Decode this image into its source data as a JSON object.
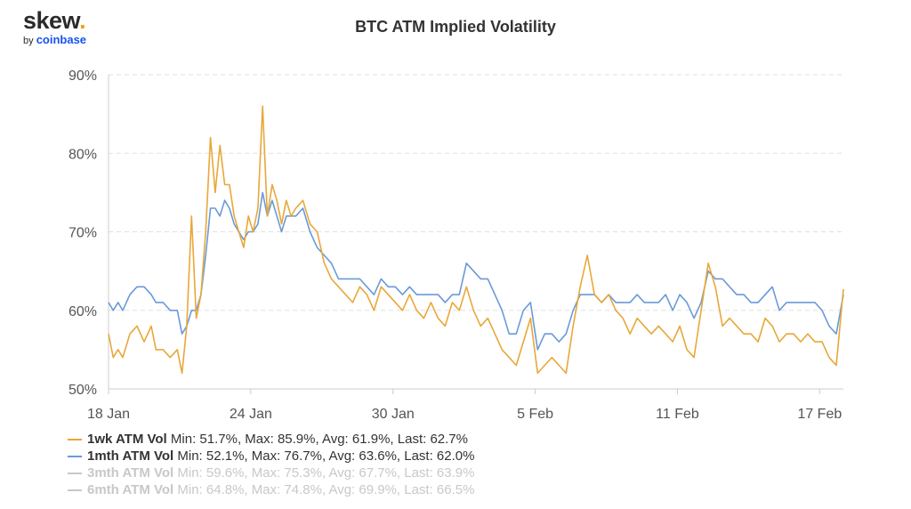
{
  "logo": {
    "brand": "skew",
    "dot": ".",
    "by": "by",
    "parent": "coinbase"
  },
  "chart_data": {
    "type": "line",
    "title": "BTC ATM Implied Volatility",
    "ylim": [
      50,
      90
    ],
    "y_ticks": [
      50,
      60,
      70,
      80,
      90
    ],
    "y_tick_labels": [
      "50%",
      "60%",
      "70%",
      "80%",
      "90%"
    ],
    "x_ticks": [
      0,
      6,
      12,
      18,
      24,
      30
    ],
    "x_tick_labels": [
      "18 Jan",
      "24 Jan",
      "30 Jan",
      "5 Feb",
      "11 Feb",
      "17 Feb"
    ],
    "x_range": [
      0,
      31
    ],
    "grid": "horizontal dashed",
    "legend_position": "bottom-left",
    "series": [
      {
        "name": "1wk ATM Vol",
        "stats": "Min: 51.7%, Max: 85.9%, Avg: 61.9%, Last: 62.7%",
        "color": "#e8a838",
        "visible": true,
        "x": [
          0,
          0.2,
          0.4,
          0.6,
          0.9,
          1.2,
          1.5,
          1.8,
          2.0,
          2.3,
          2.6,
          2.9,
          3.1,
          3.3,
          3.5,
          3.7,
          3.9,
          4.1,
          4.3,
          4.5,
          4.7,
          4.9,
          5.1,
          5.3,
          5.5,
          5.7,
          5.9,
          6.1,
          6.3,
          6.5,
          6.7,
          6.9,
          7.1,
          7.3,
          7.5,
          7.7,
          7.9,
          8.2,
          8.5,
          8.8,
          9.1,
          9.4,
          9.7,
          10.0,
          10.3,
          10.6,
          10.9,
          11.2,
          11.5,
          11.8,
          12.1,
          12.4,
          12.7,
          13.0,
          13.3,
          13.6,
          13.9,
          14.2,
          14.5,
          14.8,
          15.1,
          15.4,
          15.7,
          16.0,
          16.3,
          16.6,
          16.9,
          17.2,
          17.5,
          17.8,
          18.1,
          18.4,
          18.7,
          19.0,
          19.3,
          19.6,
          19.9,
          20.2,
          20.5,
          20.8,
          21.1,
          21.4,
          21.7,
          22.0,
          22.3,
          22.6,
          22.9,
          23.2,
          23.5,
          23.8,
          24.1,
          24.4,
          24.7,
          25.0,
          25.3,
          25.6,
          25.9,
          26.2,
          26.5,
          26.8,
          27.1,
          27.4,
          27.7,
          28.0,
          28.3,
          28.6,
          28.9,
          29.2,
          29.5,
          29.8,
          30.1,
          30.4,
          30.7,
          31.0
        ],
        "y": [
          57,
          54,
          55,
          54,
          57,
          58,
          56,
          58,
          55,
          55,
          54,
          55,
          52,
          58,
          72,
          59,
          62,
          70,
          82,
          75,
          81,
          76,
          76,
          72,
          70,
          68,
          72,
          70,
          73,
          86,
          72,
          76,
          74,
          71,
          74,
          72,
          73,
          74,
          71,
          70,
          66,
          64,
          63,
          62,
          61,
          63,
          62,
          60,
          63,
          62,
          61,
          60,
          62,
          60,
          59,
          61,
          59,
          58,
          61,
          60,
          63,
          60,
          58,
          59,
          57,
          55,
          54,
          53,
          56,
          59,
          52,
          53,
          54,
          53,
          52,
          58,
          63,
          67,
          62,
          61,
          62,
          60,
          59,
          57,
          59,
          58,
          57,
          58,
          57,
          56,
          58,
          55,
          54,
          60,
          66,
          63,
          58,
          59,
          58,
          57,
          57,
          56,
          59,
          58,
          56,
          57,
          57,
          56,
          57,
          56,
          56,
          54,
          53,
          62.7
        ]
      },
      {
        "name": "1mth ATM Vol",
        "stats": "Min: 52.1%, Max: 76.7%, Avg: 63.6%, Last: 62.0%",
        "color": "#6a9ad8",
        "visible": true,
        "x": [
          0,
          0.2,
          0.4,
          0.6,
          0.9,
          1.2,
          1.5,
          1.8,
          2.0,
          2.3,
          2.6,
          2.9,
          3.1,
          3.3,
          3.5,
          3.7,
          3.9,
          4.1,
          4.3,
          4.5,
          4.7,
          4.9,
          5.1,
          5.3,
          5.5,
          5.7,
          5.9,
          6.1,
          6.3,
          6.5,
          6.7,
          6.9,
          7.1,
          7.3,
          7.5,
          7.7,
          7.9,
          8.2,
          8.5,
          8.8,
          9.1,
          9.4,
          9.7,
          10.0,
          10.3,
          10.6,
          10.9,
          11.2,
          11.5,
          11.8,
          12.1,
          12.4,
          12.7,
          13.0,
          13.3,
          13.6,
          13.9,
          14.2,
          14.5,
          14.8,
          15.1,
          15.4,
          15.7,
          16.0,
          16.3,
          16.6,
          16.9,
          17.2,
          17.5,
          17.8,
          18.1,
          18.4,
          18.7,
          19.0,
          19.3,
          19.6,
          19.9,
          20.2,
          20.5,
          20.8,
          21.1,
          21.4,
          21.7,
          22.0,
          22.3,
          22.6,
          22.9,
          23.2,
          23.5,
          23.8,
          24.1,
          24.4,
          24.7,
          25.0,
          25.3,
          25.6,
          25.9,
          26.2,
          26.5,
          26.8,
          27.1,
          27.4,
          27.7,
          28.0,
          28.3,
          28.6,
          28.9,
          29.2,
          29.5,
          29.8,
          30.1,
          30.4,
          30.7,
          31.0
        ],
        "y": [
          61,
          60,
          61,
          60,
          62,
          63,
          63,
          62,
          61,
          61,
          60,
          60,
          57,
          58,
          60,
          60,
          62,
          67,
          73,
          73,
          72,
          74,
          73,
          71,
          70,
          69,
          70,
          70,
          71,
          75,
          72,
          74,
          72,
          70,
          72,
          72,
          72,
          73,
          70,
          68,
          67,
          66,
          64,
          64,
          64,
          64,
          63,
          62,
          64,
          63,
          63,
          62,
          63,
          62,
          62,
          62,
          62,
          61,
          62,
          62,
          66,
          65,
          64,
          64,
          62,
          60,
          57,
          57,
          60,
          61,
          55,
          57,
          57,
          56,
          57,
          60,
          62,
          62,
          62,
          61,
          62,
          61,
          61,
          61,
          62,
          61,
          61,
          61,
          62,
          60,
          62,
          61,
          59,
          61,
          65,
          64,
          64,
          63,
          62,
          62,
          61,
          61,
          62,
          63,
          60,
          61,
          61,
          61,
          61,
          61,
          60,
          58,
          57,
          62.0
        ]
      },
      {
        "name": "3mth ATM Vol",
        "stats": "Min: 59.6%, Max: 75.3%, Avg: 67.7%, Last: 63.9%",
        "color": "#c8c8c8",
        "visible": false
      },
      {
        "name": "6mth ATM Vol",
        "stats": "Min: 64.8%, Max: 74.8%, Avg: 69.9%, Last: 66.5%",
        "color": "#c8c8c8",
        "visible": false
      }
    ]
  }
}
